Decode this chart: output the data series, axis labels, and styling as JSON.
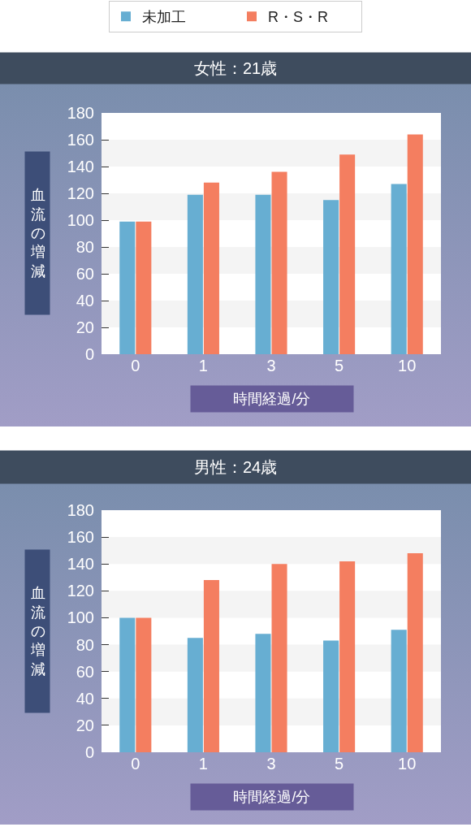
{
  "chart_data": [
    {
      "type": "bar",
      "title": "女性：21歳",
      "ylabel": "血流の増減",
      "xlabel": "時間経過/分",
      "categories": [
        "0",
        "1",
        "3",
        "5",
        "10"
      ],
      "series": [
        {
          "name": "未加工",
          "color": "#67aed2",
          "values": [
            99,
            119,
            119,
            115,
            127
          ]
        },
        {
          "name": "R・S・R",
          "color": "#f47e60",
          "values": [
            99,
            128,
            136,
            149,
            164
          ]
        }
      ],
      "ylim": [
        0,
        180
      ],
      "yticks": [
        0,
        20,
        40,
        60,
        80,
        100,
        120,
        140,
        160,
        180
      ],
      "bands": [
        {
          "axis": "y",
          "from": 20,
          "to": 40,
          "color": "#f4f4f4"
        },
        {
          "axis": "y",
          "from": 60,
          "to": 80,
          "color": "#f4f4f4"
        },
        {
          "axis": "y",
          "from": 100,
          "to": 120,
          "color": "#f4f4f4"
        },
        {
          "axis": "y",
          "from": 140,
          "to": 160,
          "color": "#f4f4f4"
        }
      ],
      "legend": "top"
    },
    {
      "type": "bar",
      "title": "男性：24歳",
      "ylabel": "血流の増減",
      "xlabel": "時間経過/分",
      "categories": [
        "0",
        "1",
        "3",
        "5",
        "10"
      ],
      "series": [
        {
          "color": "#67aed2",
          "values": [
            100,
            85,
            88,
            83,
            91
          ]
        },
        {
          "color": "#f47e60",
          "values": [
            100,
            128,
            140,
            142,
            148
          ]
        }
      ],
      "ylim": [
        0,
        180
      ],
      "yticks": [
        0,
        20,
        40,
        60,
        80,
        100,
        120,
        140,
        160,
        180
      ],
      "bands": [
        {
          "axis": "y",
          "from": 20,
          "to": 40,
          "color": "#f4f4f4"
        },
        {
          "axis": "y",
          "from": 60,
          "to": 80,
          "color": "#f4f4f4"
        },
        {
          "axis": "y",
          "from": 100,
          "to": 120,
          "color": "#f4f4f4"
        },
        {
          "axis": "y",
          "from": 140,
          "to": 160,
          "color": "#f4f4f4"
        }
      ]
    }
  ]
}
